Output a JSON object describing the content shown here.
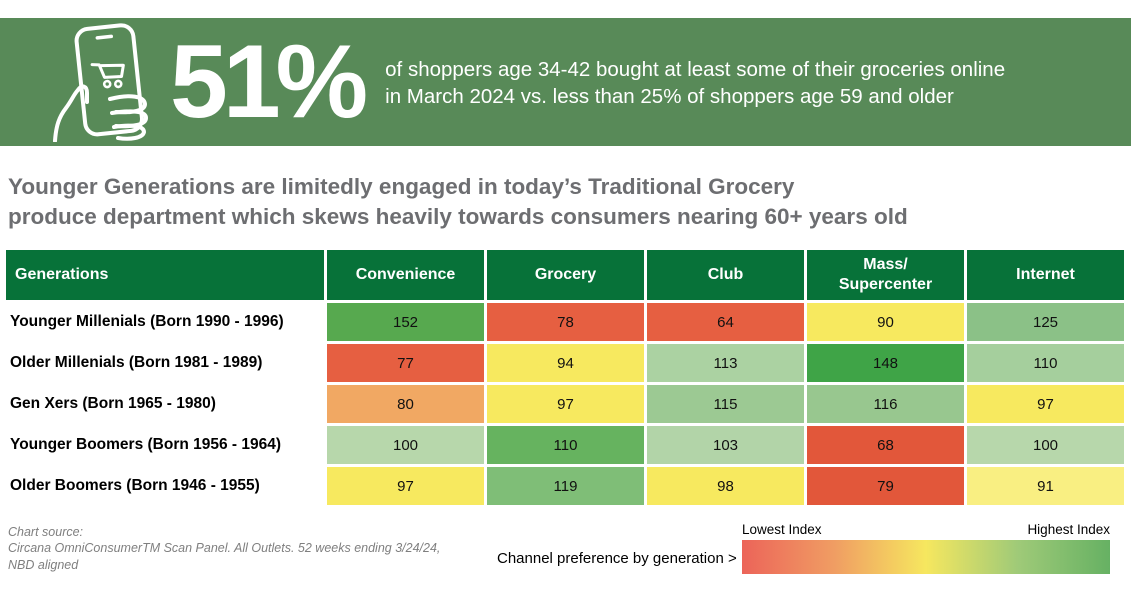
{
  "banner": {
    "stat": "51%",
    "description_line1": "of shoppers age 34-42 bought at least some of their groceries online",
    "description_line2": "in March 2024 vs. less than 25% of shoppers age 59 and older",
    "bg_color": "#588a58",
    "icon": "hand-holding-phone-with-shopping-cart"
  },
  "headline": {
    "line1": "Younger Generations are limitedly engaged in today’s Traditional Grocery",
    "line2": "produce department which skews heavily towards consumers nearing 60+ years old",
    "color": "#6d6e71"
  },
  "chart_data": {
    "type": "heatmap",
    "title": "Channel preference index by generation",
    "row_header": "Generations",
    "columns": [
      "Convenience",
      "Grocery",
      "Club",
      "Mass/\nSupercenter",
      "Internet"
    ],
    "header_bg": "#077239",
    "rows": [
      {
        "label": "Younger Millenials (Born 1990 - 1996)",
        "values": [
          152,
          78,
          64,
          90,
          125
        ],
        "colors": [
          "#57a94f",
          "#e65f41",
          "#e65f41",
          "#f7e95f",
          "#8bc187"
        ]
      },
      {
        "label": "Older Millenials (Born 1981 - 1989)",
        "values": [
          77,
          94,
          113,
          148,
          110
        ],
        "colors": [
          "#e65f41",
          "#f7e95f",
          "#abd2a2",
          "#3fa447",
          "#a5cf9d"
        ]
      },
      {
        "label": "Gen Xers (Born 1965 - 1980)",
        "values": [
          80,
          97,
          115,
          116,
          97
        ],
        "colors": [
          "#f1a863",
          "#f7e95f",
          "#9cc993",
          "#98c78f",
          "#f7e95f"
        ]
      },
      {
        "label": "Younger Boomers (Born 1956 - 1964)",
        "values": [
          100,
          110,
          103,
          68,
          100
        ],
        "colors": [
          "#b7d7ab",
          "#66b35f",
          "#b2d4a8",
          "#e2573a",
          "#b7d7ab"
        ]
      },
      {
        "label": "Older Boomers (Born 1946 - 1955)",
        "values": [
          97,
          119,
          98,
          79,
          91
        ],
        "colors": [
          "#f7e95f",
          "#7fbe77",
          "#f7e95f",
          "#e2573a",
          "#f9ef82"
        ]
      }
    ],
    "legend": {
      "low": "Lowest Index",
      "high": "Highest Index",
      "gradient": [
        "#ec6459",
        "#f09d63",
        "#f6e75f",
        "#9fca78",
        "#66b163"
      ]
    }
  },
  "footer": {
    "source_line1": "Chart source:",
    "source_line2": "Circana OmniConsumerTM Scan Panel. All Outlets. 52 weeks ending 3/24/24,",
    "source_line3": "NBD aligned",
    "caption": "Channel preference by generation >"
  }
}
